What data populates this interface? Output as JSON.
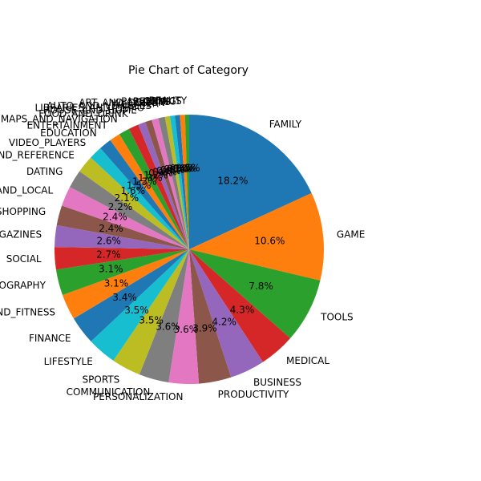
{
  "chart_data": {
    "type": "pie",
    "title": "Pie Chart of Category",
    "start_angle_deg": 90,
    "direction": "clockwise",
    "categories": [
      "FAMILY",
      "GAME",
      "TOOLS",
      "MEDICAL",
      "BUSINESS",
      "PRODUCTIVITY",
      "PERSONALIZATION",
      "COMMUNICATION",
      "SPORTS",
      "LIFESTYLE",
      "FINANCE",
      "HEALTH_AND_FITNESS",
      "PHOTOGRAPHY",
      "SOCIAL",
      "NEWS_AND_MAGAZINES",
      "SHOPPING",
      "TRAVEL_AND_LOCAL",
      "DATING",
      "BOOKS_AND_REFERENCE",
      "VIDEO_PLAYERS",
      "EDUCATION",
      "ENTERTAINMENT",
      "MAPS_AND_NAVIGATION",
      "FOOD_AND_DRINK",
      "HOUSE_AND_HOME",
      "LIBRARIES_AND_DEMO",
      "AUTO_AND_VEHICLES",
      "WEATHER",
      "ART_AND_DESIGN",
      "EVENTS",
      "PARENTING",
      "COMICS",
      "BEAUTY"
    ],
    "values": [
      18.2,
      10.6,
      7.8,
      4.3,
      4.2,
      3.9,
      3.6,
      3.6,
      3.5,
      3.5,
      3.4,
      3.1,
      3.1,
      2.7,
      2.6,
      2.4,
      2.4,
      2.2,
      2.1,
      1.6,
      1.5,
      1.3,
      1.3,
      1.2,
      0.9,
      0.8,
      0.8,
      0.8,
      0.6,
      0.6,
      0.6,
      0.6,
      0.5
    ],
    "percent_labels": [
      "18.2%",
      "10.6%",
      "7.8%",
      "4.3%",
      "4.2%",
      "3.9%",
      "3.6%",
      "3.6%",
      "3.5%",
      "3.5%",
      "3.4%",
      "3.1%",
      "3.1%",
      "2.7%",
      "2.6%",
      "2.4%",
      "2.4%",
      "2.2%",
      "2.1%",
      "1.6%",
      "1.5%",
      "1.3%",
      "1.3%",
      "1.2%",
      "0.9%",
      "0.8%",
      "0.8%",
      "0.8%",
      "0.6%",
      "0.6%",
      "0.6%",
      "0.6%",
      "0.5%"
    ],
    "colors": [
      "#1f77b4",
      "#ff7f0e",
      "#2ca02c",
      "#d62728",
      "#9467bd",
      "#8c564b",
      "#e377c2",
      "#7f7f7f",
      "#bcbd22",
      "#17becf"
    ],
    "legend": "none"
  }
}
